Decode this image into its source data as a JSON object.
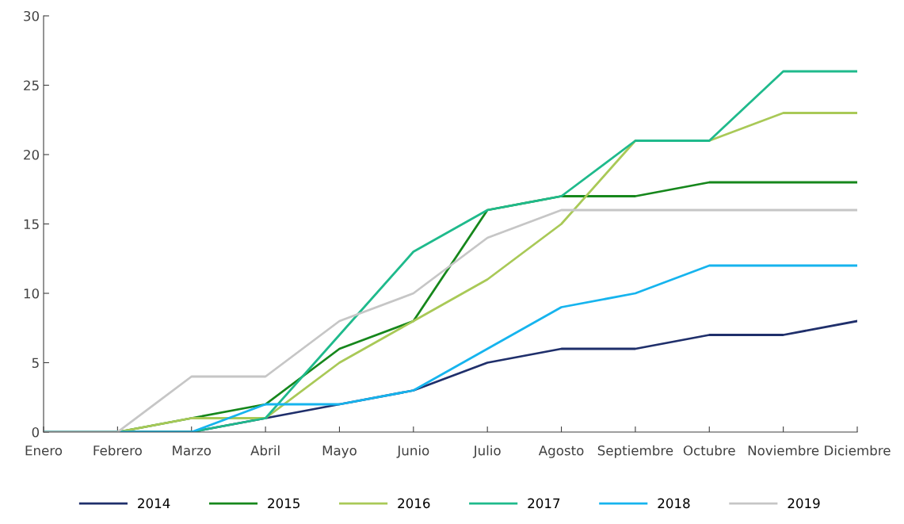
{
  "chart_data": {
    "type": "line",
    "categories": [
      "Enero",
      "Febrero",
      "Marzo",
      "Abril",
      "Mayo",
      "Junio",
      "Julio",
      "Agosto",
      "Septiembre",
      "Octubre",
      "Noviembre",
      "Diciembre"
    ],
    "series": [
      {
        "name": "2014",
        "color": "#1f2f6b",
        "values": [
          0,
          0,
          0,
          1,
          2,
          3,
          5,
          6,
          6,
          7,
          7,
          8
        ]
      },
      {
        "name": "2015",
        "color": "#16871c",
        "values": [
          0,
          0,
          1,
          2,
          6,
          8,
          16,
          17,
          17,
          18,
          18,
          18
        ]
      },
      {
        "name": "2016",
        "color": "#a9c957",
        "values": [
          0,
          0,
          1,
          1,
          5,
          8,
          11,
          15,
          21,
          21,
          23,
          23
        ]
      },
      {
        "name": "2017",
        "color": "#1fba8c",
        "values": [
          0,
          0,
          0,
          1,
          7,
          13,
          16,
          17,
          21,
          21,
          26,
          26
        ]
      },
      {
        "name": "2018",
        "color": "#16b4ee",
        "values": [
          0,
          0,
          0,
          2,
          2,
          3,
          6,
          9,
          10,
          12,
          12,
          12
        ]
      },
      {
        "name": "2019",
        "color": "#c6c6c6",
        "values": [
          0,
          0,
          4,
          4,
          8,
          10,
          14,
          16,
          16,
          16,
          16,
          16
        ]
      }
    ],
    "ylim": [
      0,
      30
    ],
    "yticks": [
      0,
      5,
      10,
      15,
      20,
      25,
      30
    ],
    "grid": false,
    "legend": "bottom",
    "marker": "none",
    "line_style": "solid"
  }
}
